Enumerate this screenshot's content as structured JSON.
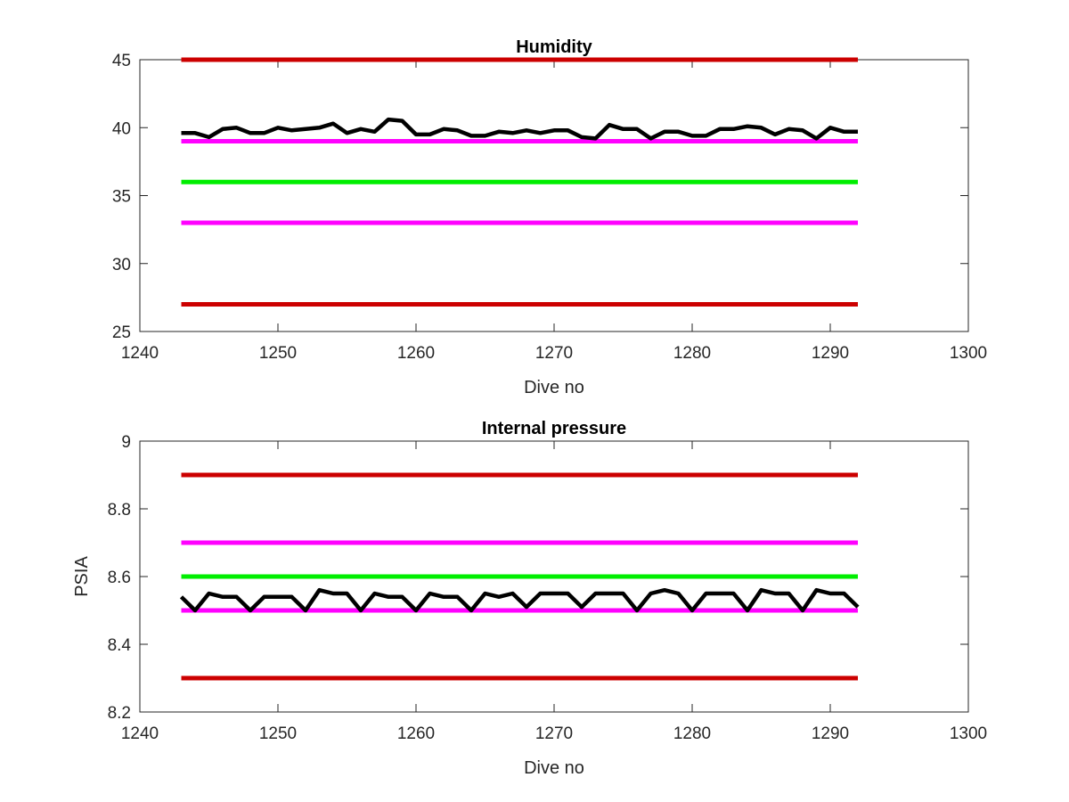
{
  "chart_data": [
    {
      "type": "line",
      "title": "Humidity",
      "xlabel": "Dive no",
      "ylabel": "",
      "xlim": [
        1240,
        1300
      ],
      "ylim": [
        25,
        45
      ],
      "xticks": [
        "1240",
        "1250",
        "1260",
        "1270",
        "1280",
        "1290",
        "1300"
      ],
      "yticks": [
        "25",
        "30",
        "35",
        "40",
        "45"
      ],
      "grid": false,
      "colors": {
        "upper_limit": "#cc0000",
        "warning": "#ff00ff",
        "target": "#00ee00",
        "measured": "#000000"
      },
      "reference_lines": [
        {
          "y": 45,
          "x": [
            1243,
            1292
          ],
          "color": "#cc0000"
        },
        {
          "y": 39,
          "x": [
            1243,
            1292
          ],
          "color": "#ff00ff"
        },
        {
          "y": 36,
          "x": [
            1243,
            1292
          ],
          "color": "#00ee00"
        },
        {
          "y": 33,
          "x": [
            1243,
            1292
          ],
          "color": "#ff00ff"
        },
        {
          "y": 27,
          "x": [
            1243,
            1292
          ],
          "color": "#cc0000"
        }
      ],
      "series": [
        {
          "color": "#000000",
          "x": [
            1243,
            1244,
            1245,
            1246,
            1247,
            1248,
            1249,
            1250,
            1251,
            1252,
            1253,
            1254,
            1255,
            1256,
            1257,
            1258,
            1259,
            1260,
            1261,
            1262,
            1263,
            1264,
            1265,
            1266,
            1267,
            1268,
            1269,
            1270,
            1271,
            1272,
            1273,
            1274,
            1275,
            1276,
            1277,
            1278,
            1279,
            1280,
            1281,
            1282,
            1283,
            1284,
            1285,
            1286,
            1287,
            1288,
            1289,
            1290,
            1291,
            1292
          ],
          "values": [
            39.6,
            39.6,
            39.3,
            39.9,
            40.0,
            39.6,
            39.6,
            40.0,
            39.8,
            39.9,
            40.0,
            40.3,
            39.6,
            39.9,
            39.7,
            40.6,
            40.5,
            39.5,
            39.5,
            39.9,
            39.8,
            39.4,
            39.4,
            39.7,
            39.6,
            39.8,
            39.6,
            39.8,
            39.8,
            39.3,
            39.2,
            40.2,
            39.9,
            39.9,
            39.2,
            39.7,
            39.7,
            39.4,
            39.4,
            39.9,
            39.9,
            40.1,
            40.0,
            39.5,
            39.9,
            39.8,
            39.2,
            40.0,
            39.7,
            39.7
          ]
        }
      ]
    },
    {
      "type": "line",
      "title": "Internal pressure",
      "xlabel": "Dive no",
      "ylabel": "PSIA",
      "xlim": [
        1240,
        1300
      ],
      "ylim": [
        8.2,
        9.0
      ],
      "xticks": [
        "1240",
        "1250",
        "1260",
        "1270",
        "1280",
        "1290",
        "1300"
      ],
      "yticks": [
        "8.2",
        "8.4",
        "8.6",
        "8.8",
        "9"
      ],
      "grid": false,
      "colors": {
        "upper_limit": "#cc0000",
        "warning": "#ff00ff",
        "target": "#00ee00",
        "measured": "#000000"
      },
      "reference_lines": [
        {
          "y": 8.9,
          "x": [
            1243,
            1292
          ],
          "color": "#cc0000"
        },
        {
          "y": 8.7,
          "x": [
            1243,
            1292
          ],
          "color": "#ff00ff"
        },
        {
          "y": 8.6,
          "x": [
            1243,
            1292
          ],
          "color": "#00ee00"
        },
        {
          "y": 8.5,
          "x": [
            1243,
            1292
          ],
          "color": "#ff00ff"
        },
        {
          "y": 8.3,
          "x": [
            1243,
            1292
          ],
          "color": "#cc0000"
        }
      ],
      "series": [
        {
          "color": "#000000",
          "x": [
            1243,
            1244,
            1245,
            1246,
            1247,
            1248,
            1249,
            1250,
            1251,
            1252,
            1253,
            1254,
            1255,
            1256,
            1257,
            1258,
            1259,
            1260,
            1261,
            1262,
            1263,
            1264,
            1265,
            1266,
            1267,
            1268,
            1269,
            1270,
            1271,
            1272,
            1273,
            1274,
            1275,
            1276,
            1277,
            1278,
            1279,
            1280,
            1281,
            1282,
            1283,
            1284,
            1285,
            1286,
            1287,
            1288,
            1289,
            1290,
            1291,
            1292
          ],
          "values": [
            8.54,
            8.5,
            8.55,
            8.54,
            8.54,
            8.5,
            8.54,
            8.54,
            8.54,
            8.5,
            8.56,
            8.55,
            8.55,
            8.5,
            8.55,
            8.54,
            8.54,
            8.5,
            8.55,
            8.54,
            8.54,
            8.5,
            8.55,
            8.54,
            8.55,
            8.51,
            8.55,
            8.55,
            8.55,
            8.51,
            8.55,
            8.55,
            8.55,
            8.5,
            8.55,
            8.56,
            8.55,
            8.5,
            8.55,
            8.55,
            8.55,
            8.5,
            8.56,
            8.55,
            8.55,
            8.5,
            8.56,
            8.55,
            8.55,
            8.51
          ]
        }
      ]
    }
  ]
}
